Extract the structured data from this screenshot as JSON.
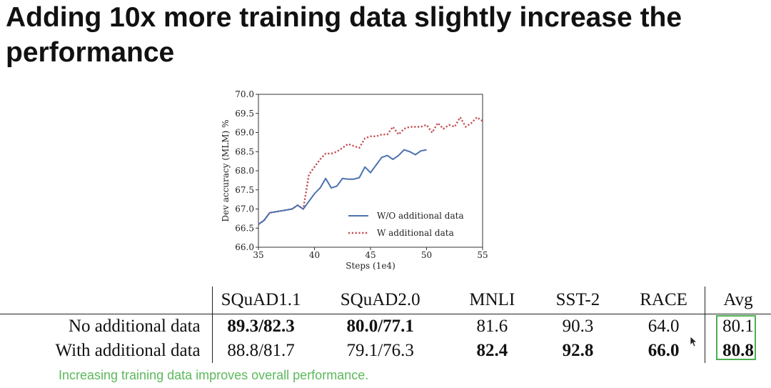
{
  "slide": {
    "title": "Adding 10x more training data slightly increase the performance",
    "caption": "Increasing training data improves overall performance."
  },
  "chart_data": {
    "type": "line",
    "xlabel": "Steps (1e4)",
    "ylabel": "Dev accuracy (MLM) %",
    "xlim": [
      35,
      55
    ],
    "ylim": [
      66.0,
      70.0
    ],
    "xticks": [
      "35",
      "40",
      "45",
      "50",
      "55"
    ],
    "yticks": [
      "66.0",
      "66.5",
      "67.0",
      "67.5",
      "68.0",
      "68.5",
      "69.0",
      "69.5",
      "70.0"
    ],
    "grid": false,
    "legend_position": "lower-right",
    "series": [
      {
        "name": "W/O additional data",
        "color": "#4c72b0",
        "style": "solid",
        "x": [
          35,
          35.5,
          36,
          37,
          38,
          38.5,
          39,
          39.5,
          40,
          40.5,
          41,
          41.5,
          42,
          42.5,
          43,
          43.5,
          44,
          44.5,
          45,
          45.5,
          46,
          46.5,
          47,
          47.5,
          48,
          48.5,
          49,
          49.5,
          50
        ],
        "y": [
          66.6,
          66.7,
          66.9,
          66.95,
          67.0,
          67.1,
          67.0,
          67.2,
          67.4,
          67.55,
          67.8,
          67.55,
          67.6,
          67.8,
          67.78,
          67.78,
          67.82,
          68.1,
          67.95,
          68.15,
          68.35,
          68.4,
          68.3,
          68.4,
          68.55,
          68.5,
          68.42,
          68.52,
          68.55
        ]
      },
      {
        "name": "W additional data",
        "color": "#c44e52",
        "style": "dotted",
        "x": [
          35,
          35.5,
          36,
          37,
          38,
          38.5,
          39,
          39.5,
          40,
          40.5,
          41,
          41.5,
          42,
          42.5,
          43,
          43.5,
          44,
          44.5,
          45,
          45.5,
          46,
          46.5,
          47,
          47.5,
          48,
          48.5,
          49,
          49.5,
          50,
          50.5,
          51,
          51.5,
          52,
          52.5,
          53,
          53.5,
          54,
          54.5,
          55
        ],
        "y": [
          66.6,
          66.7,
          66.9,
          66.95,
          67.0,
          67.1,
          67.0,
          67.9,
          68.1,
          68.3,
          68.45,
          68.45,
          68.5,
          68.6,
          68.7,
          68.65,
          68.6,
          68.85,
          68.9,
          68.9,
          68.95,
          68.95,
          69.15,
          68.95,
          69.1,
          69.15,
          69.15,
          69.15,
          69.2,
          69.0,
          69.25,
          69.1,
          69.2,
          69.15,
          69.4,
          69.15,
          69.25,
          69.4,
          69.3
        ]
      }
    ]
  },
  "table": {
    "columns": [
      "SQuAD1.1",
      "SQuAD2.0",
      "MNLI",
      "SST-2",
      "RACE",
      "Avg"
    ],
    "rows": [
      {
        "label": "No additional data",
        "cells": [
          "89.3/82.3",
          "80.0/77.1",
          "81.6",
          "90.3",
          "64.0",
          "80.1"
        ],
        "bold": [
          true,
          true,
          false,
          false,
          false,
          false
        ]
      },
      {
        "label": "With additional data",
        "cells": [
          "88.8/81.7",
          "79.1/76.3",
          "82.4",
          "92.8",
          "66.0",
          "80.8"
        ],
        "bold": [
          false,
          false,
          true,
          true,
          true,
          true
        ]
      }
    ],
    "highlight_color": "#4caf50"
  },
  "icons": {
    "cursor": "mouse-pointer-icon"
  }
}
